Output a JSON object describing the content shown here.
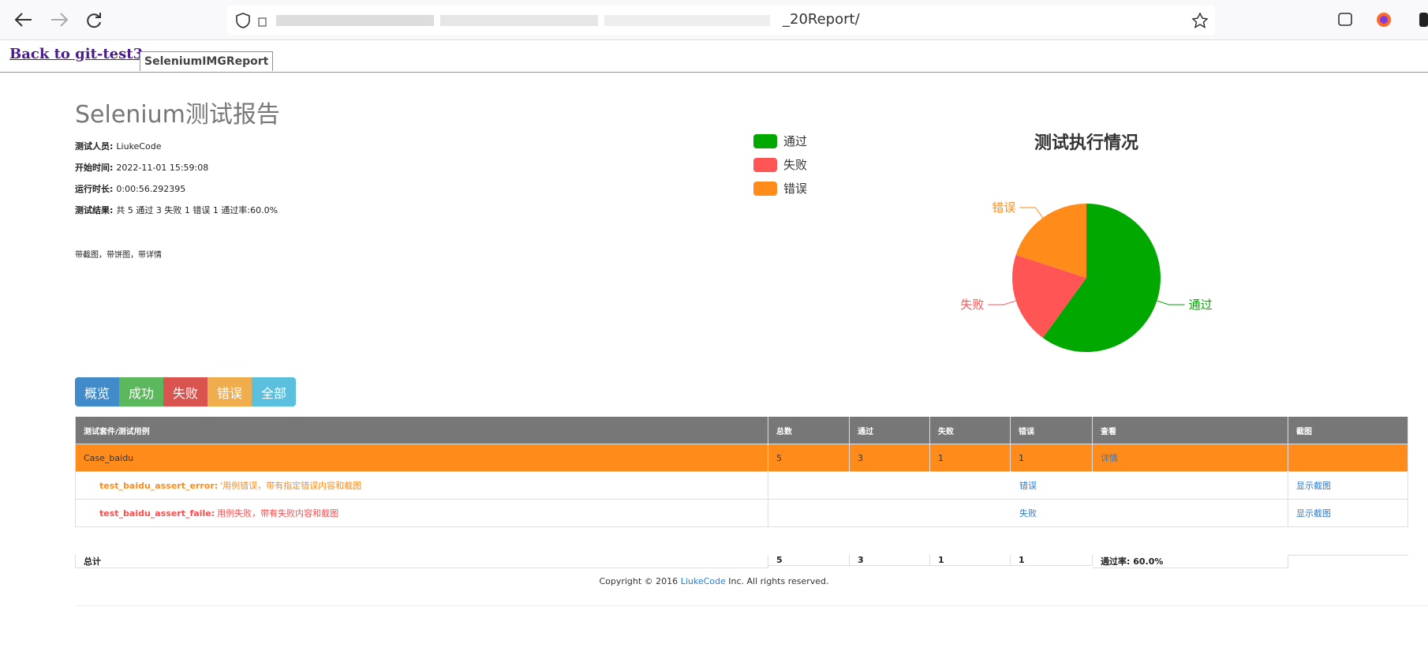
{
  "browser": {
    "url": "_20Report/"
  },
  "nav": {
    "back_link": "Back to git-test3",
    "tab": "SeleniumIMGReport"
  },
  "header": {
    "title": "Selenium测试报告",
    "info": [
      {
        "label": "测试人员:",
        "value": "LiukeCode"
      },
      {
        "label": "开始时间:",
        "value": "2022-11-01 15:59:08"
      },
      {
        "label": "运行时长:",
        "value": "0:00:56.292395"
      },
      {
        "label": "测试结果:",
        "value": "共 5 通过 3 失败 1 错误 1 通过率:60.0%"
      }
    ],
    "note": "带截图，带饼图，带详情"
  },
  "chart_data": {
    "type": "pie",
    "title": "测试执行情况",
    "categories": [
      "通过",
      "失败",
      "错误"
    ],
    "values": [
      3,
      1,
      1
    ],
    "colors": [
      "#00a800",
      "#ff5555",
      "#ff8c1a"
    ]
  },
  "buttons": [
    "概览",
    "成功",
    "失败",
    "错误",
    "全部"
  ],
  "table": {
    "headers": [
      "测试套件/测试用例",
      "总数",
      "通过",
      "失败",
      "错误",
      "查看",
      "截图"
    ],
    "suite": {
      "cells": [
        "Case_baidu",
        5,
        3,
        1,
        1,
        "详情"
      ]
    },
    "cases": [
      {
        "name": "test_baidu_assert_error:",
        "desc": "'用例错误，带有指定错误内容和截图",
        "status": "错误",
        "shot": "显示截图"
      },
      {
        "name": "test_baidu_assert_faile:",
        "desc": "用例失败，带有失败内容和截图",
        "status": "失败",
        "shot": "显示截图"
      }
    ],
    "total": {
      "cells": [
        "总计",
        5,
        3,
        1,
        1,
        "通过率: 60.0%"
      ]
    }
  },
  "footer": {
    "prefix": "Copyright © 2016",
    "link": "LiukeCode",
    "suffix": "Inc. All rights reserved."
  }
}
